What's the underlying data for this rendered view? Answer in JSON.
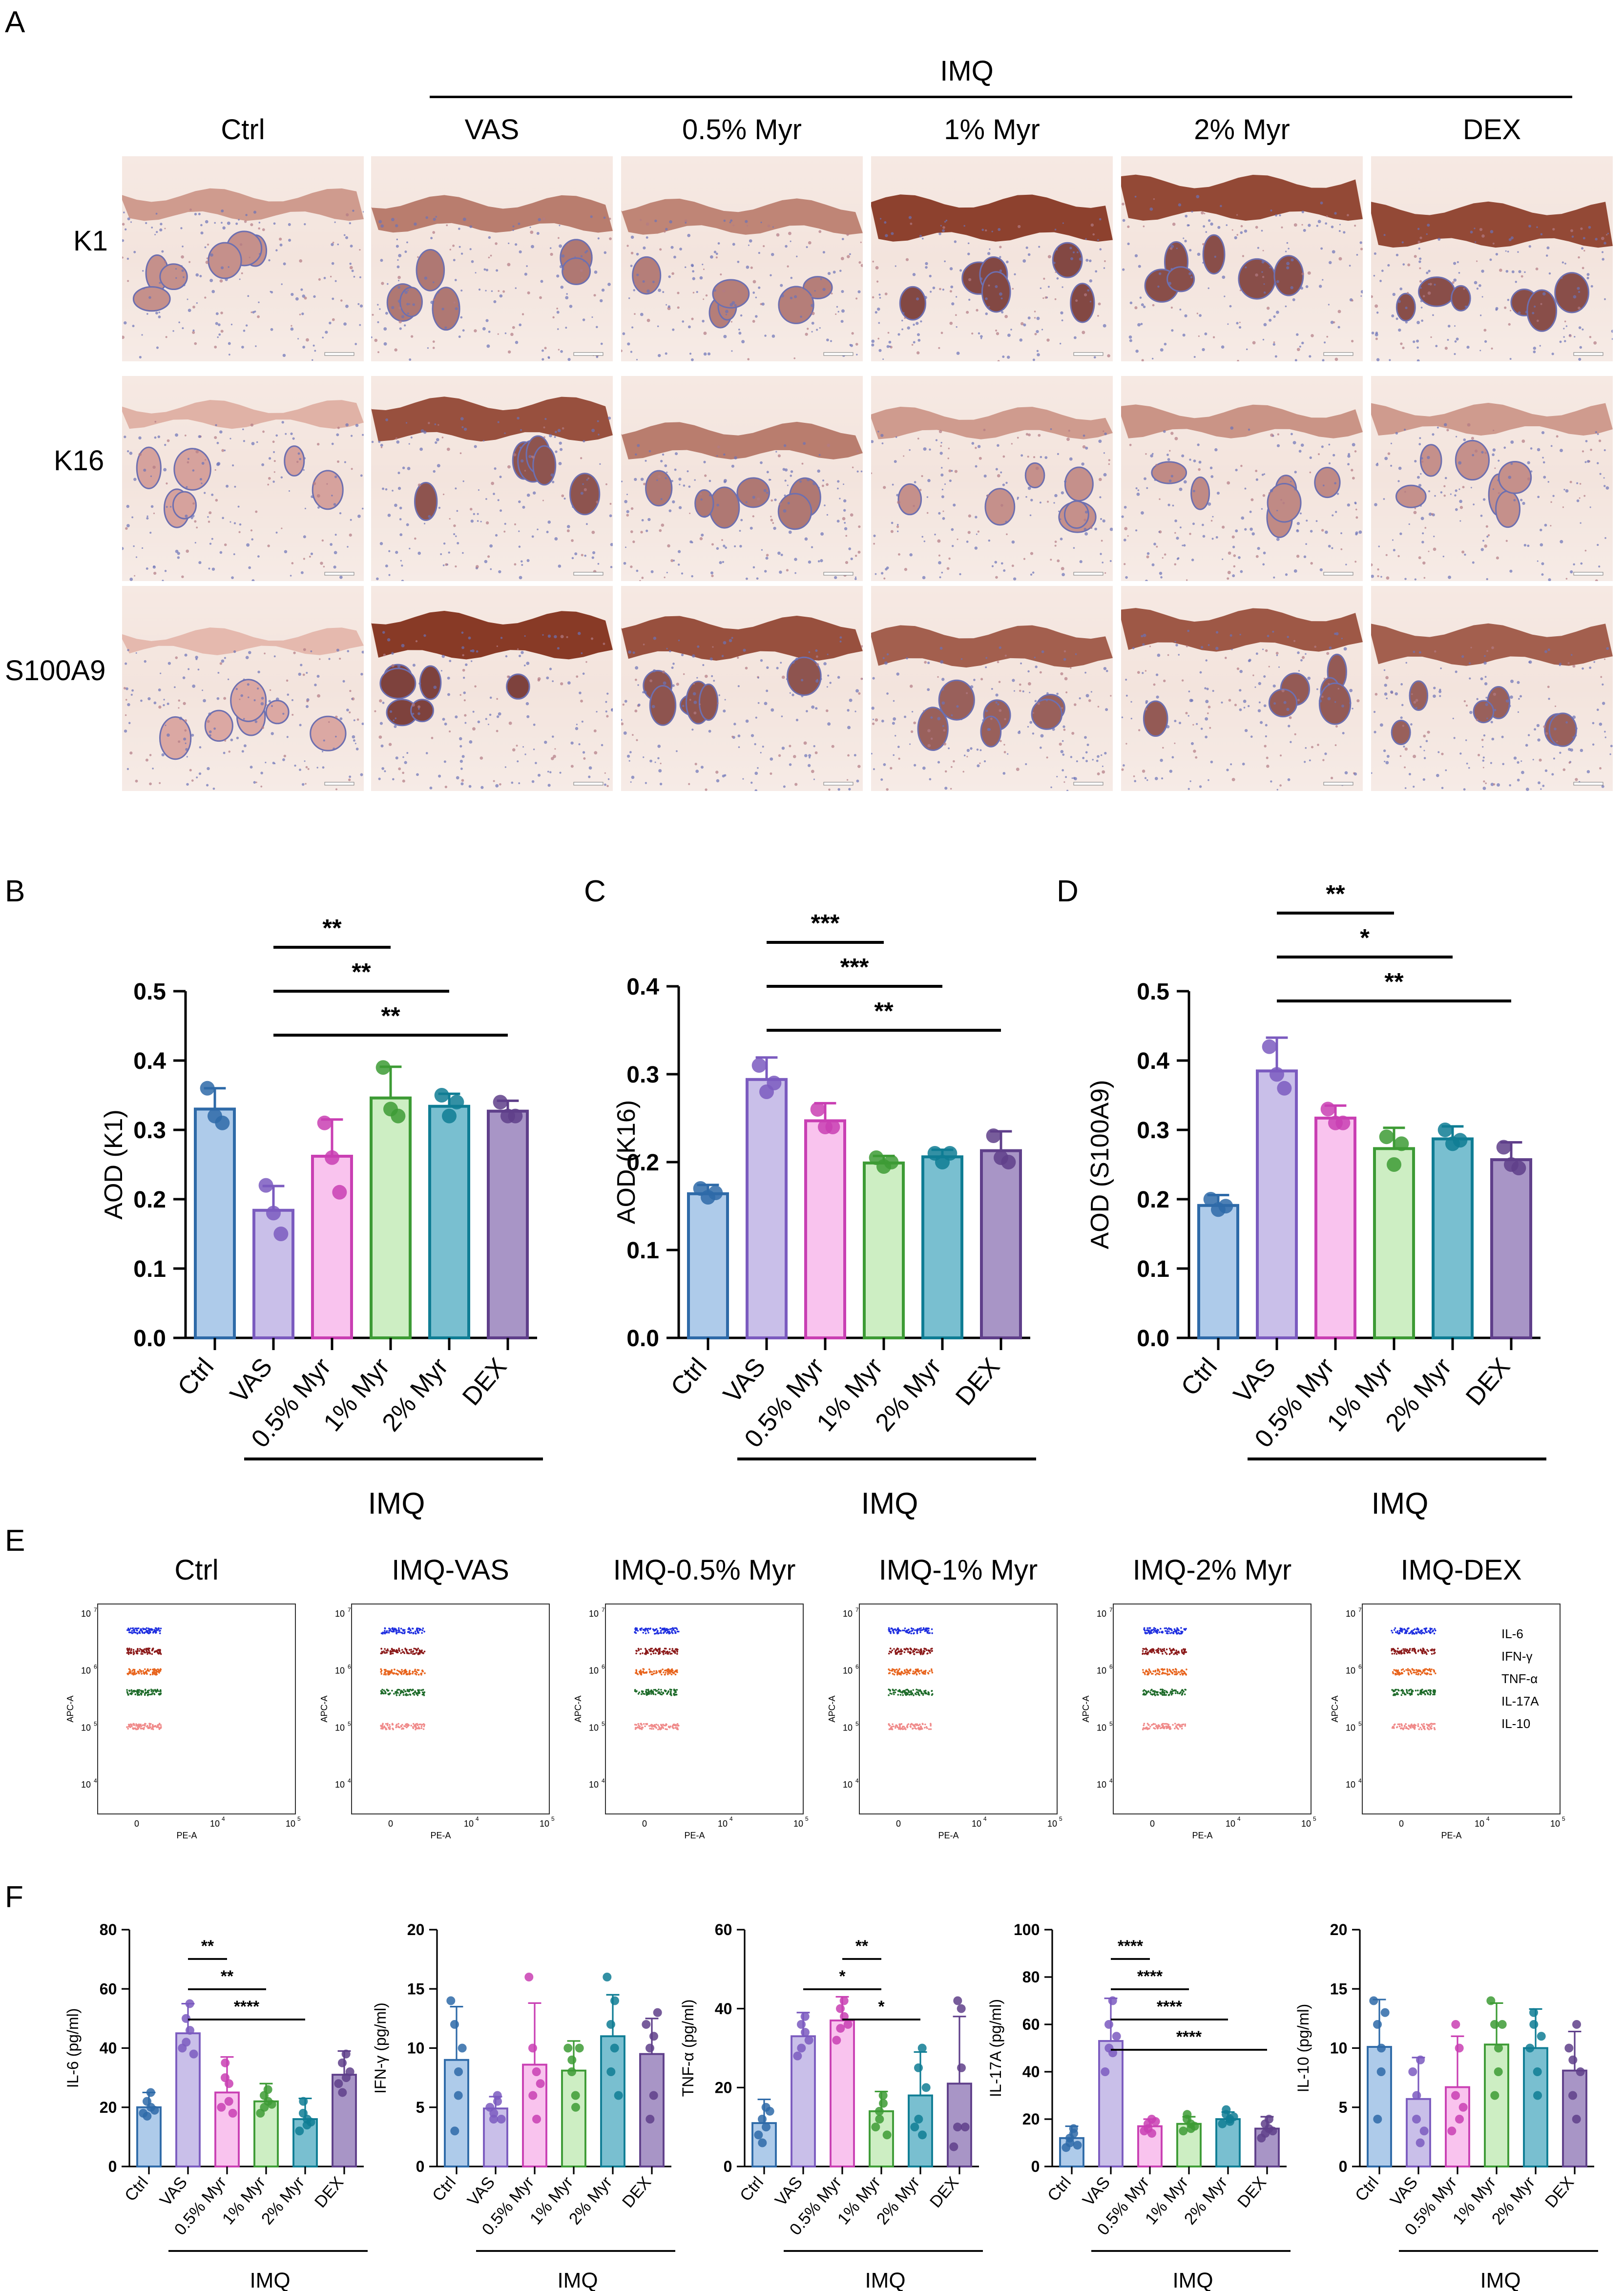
{
  "panel_labels": {
    "A": "A",
    "B": "B",
    "C": "C",
    "D": "D",
    "E": "E",
    "F": "F"
  },
  "panel_a": {
    "imq_label": "IMQ",
    "columns": [
      "Ctrl",
      "VAS",
      "0.5% Myr",
      "1% Myr",
      "2% Myr",
      "DEX"
    ],
    "rows": [
      "K1",
      "K16",
      "S100A9"
    ],
    "stain_colors": {
      "epidermis": "#9a3a22",
      "nuclei": "#5560a8",
      "background": "#f4e6df"
    }
  },
  "colors": {
    "Ctrl": "#aecbea",
    "Ctrl_edge": "#2e6aa8",
    "VAS": "#c9bfe9",
    "VAS_edge": "#7b5bbf",
    "0.5% Myr": "#f9c3ee",
    "0.5% Myr_edge": "#c93fb3",
    "1% Myr": "#cdeec3",
    "1% Myr_edge": "#3d9b35",
    "2% Myr": "#79bfd0",
    "2% Myr_edge": "#0f7d94",
    "DEX": "#a895c6",
    "DEX_edge": "#5f3f8a"
  },
  "chart_data": [
    {
      "panel": "B",
      "type": "bar",
      "categories": [
        "Ctrl",
        "VAS",
        "0.5% Myr",
        "1% Myr",
        "2% Myr",
        "DEX"
      ],
      "values": [
        0.33,
        0.184,
        0.262,
        0.346,
        0.334,
        0.327
      ],
      "errors": [
        0.03,
        0.035,
        0.053,
        0.045,
        0.018,
        0.015
      ],
      "points": [
        [
          0.36,
          0.32,
          0.31
        ],
        [
          0.22,
          0.18,
          0.15
        ],
        [
          0.31,
          0.26,
          0.21
        ],
        [
          0.39,
          0.33,
          0.32
        ],
        [
          0.35,
          0.32,
          0.34
        ],
        [
          0.34,
          0.32,
          0.32
        ]
      ],
      "ylabel": "AOD (K1)",
      "ylim": [
        0,
        0.5
      ],
      "yticks": [
        "0.0",
        "0.1",
        "0.2",
        "0.3",
        "0.4",
        "0.5"
      ],
      "group_label": "IMQ",
      "significance": [
        {
          "from": 1,
          "to": 3,
          "label": "**"
        },
        {
          "from": 1,
          "to": 4,
          "label": "**"
        },
        {
          "from": 1,
          "to": 5,
          "label": "**"
        }
      ]
    },
    {
      "panel": "C",
      "type": "bar",
      "categories": [
        "Ctrl",
        "VAS",
        "0.5% Myr",
        "1% Myr",
        "2% Myr",
        "DEX"
      ],
      "values": [
        0.164,
        0.294,
        0.247,
        0.199,
        0.206,
        0.213
      ],
      "errors": [
        0.01,
        0.025,
        0.02,
        0.008,
        0.008,
        0.022
      ],
      "points": [
        [
          0.17,
          0.16,
          0.165
        ],
        [
          0.31,
          0.28,
          0.29
        ],
        [
          0.26,
          0.24,
          0.24
        ],
        [
          0.205,
          0.195,
          0.2
        ],
        [
          0.21,
          0.2,
          0.21
        ],
        [
          0.23,
          0.205,
          0.2
        ]
      ],
      "ylabel": "AOD (K16)",
      "ylim": [
        0,
        0.4
      ],
      "yticks": [
        "0.0",
        "0.1",
        "0.2",
        "0.3",
        "0.4"
      ],
      "group_label": "IMQ",
      "significance": [
        {
          "from": 1,
          "to": 3,
          "label": "***"
        },
        {
          "from": 1,
          "to": 4,
          "label": "***"
        },
        {
          "from": 1,
          "to": 5,
          "label": "**"
        }
      ]
    },
    {
      "panel": "D",
      "type": "bar",
      "categories": [
        "Ctrl",
        "VAS",
        "0.5% Myr",
        "1% Myr",
        "2% Myr",
        "DEX"
      ],
      "values": [
        0.191,
        0.385,
        0.317,
        0.273,
        0.287,
        0.257
      ],
      "errors": [
        0.015,
        0.048,
        0.018,
        0.03,
        0.018,
        0.025
      ],
      "points": [
        [
          0.2,
          0.185,
          0.19
        ],
        [
          0.42,
          0.38,
          0.36
        ],
        [
          0.33,
          0.31,
          0.31
        ],
        [
          0.29,
          0.25,
          0.28
        ],
        [
          0.3,
          0.28,
          0.285
        ],
        [
          0.275,
          0.25,
          0.245
        ]
      ],
      "ylabel": "AOD (S100A9)",
      "ylim": [
        0,
        0.5
      ],
      "yticks": [
        "0.0",
        "0.1",
        "0.2",
        "0.3",
        "0.4",
        "0.5"
      ],
      "group_label": "IMQ",
      "significance": [
        {
          "from": 1,
          "to": 3,
          "label": "**"
        },
        {
          "from": 1,
          "to": 4,
          "label": "*"
        },
        {
          "from": 1,
          "to": 5,
          "label": "**"
        }
      ]
    },
    {
      "panel": "E",
      "type": "scatter",
      "plots": [
        "Ctrl",
        "IMQ-VAS",
        "IMQ-0.5% Myr",
        "IMQ-1% Myr",
        "IMQ-2% Myr",
        "IMQ-DEX"
      ],
      "xlabel": "PE-A",
      "ylabel": "APC-A",
      "xticks": [
        "0",
        "10",
        "10"
      ],
      "xtick_exps": [
        "",
        "4",
        "5"
      ],
      "yticks": [
        "10",
        "10",
        "10",
        "10"
      ],
      "ytick_exps": [
        "4",
        "5",
        "6",
        "7"
      ],
      "populations": [
        {
          "name": "IL-6",
          "color": "#1f2fe0"
        },
        {
          "name": "IFN-γ",
          "color": "#8b1a1a"
        },
        {
          "name": "TNF-α",
          "color": "#e8651e"
        },
        {
          "name": "IL-17A",
          "color": "#1e6b2a"
        },
        {
          "name": "IL-10",
          "color": "#f08a8a"
        }
      ]
    },
    {
      "panel": "F1",
      "type": "bar",
      "categories": [
        "Ctrl",
        "VAS",
        "0.5% Myr",
        "1% Myr",
        "2% Myr",
        "DEX"
      ],
      "values": [
        20,
        45,
        25,
        22,
        16,
        31
      ],
      "errors": [
        5,
        10,
        12,
        6,
        7,
        8
      ],
      "points": [
        [
          18,
          22,
          25,
          17,
          20,
          19
        ],
        [
          40,
          50,
          55,
          42,
          46,
          38
        ],
        [
          20,
          30,
          22,
          35,
          28,
          18
        ],
        [
          18,
          24,
          26,
          20,
          22,
          21
        ],
        [
          12,
          18,
          14,
          22,
          16,
          15
        ],
        [
          28,
          35,
          38,
          25,
          30,
          32
        ]
      ],
      "ylabel": "IL-6 (pg/ml)",
      "ylim": [
        0,
        80
      ],
      "yticks": [
        "0",
        "20",
        "40",
        "60",
        "80"
      ],
      "group_label": "IMQ",
      "significance": [
        {
          "from": 1,
          "to": 2,
          "label": "**"
        },
        {
          "from": 1,
          "to": 3,
          "label": "**"
        },
        {
          "from": 1,
          "to": 4,
          "label": "****"
        }
      ]
    },
    {
      "panel": "F2",
      "type": "bar",
      "categories": [
        "Ctrl",
        "VAS",
        "0.5% Myr",
        "1% Myr",
        "2% Myr",
        "DEX"
      ],
      "values": [
        9.0,
        4.9,
        8.6,
        8.1,
        11.0,
        9.5
      ],
      "errors": [
        4.5,
        1.0,
        5.2,
        2.5,
        3.5,
        3.0
      ],
      "points": [
        [
          14,
          12,
          6,
          3,
          8,
          10
        ],
        [
          5,
          4,
          6,
          4.5,
          5.5,
          4
        ],
        [
          16,
          10,
          8,
          6,
          4,
          7
        ],
        [
          10,
          8,
          6,
          9,
          5,
          10
        ],
        [
          16,
          12,
          10,
          8,
          14,
          6
        ],
        [
          12,
          10,
          6,
          4,
          11,
          13
        ]
      ],
      "ylabel": "IFN-γ (pg/ml)",
      "ylim": [
        0,
        20
      ],
      "yticks": [
        "0",
        "5",
        "10",
        "15",
        "20"
      ],
      "group_label": "IMQ",
      "significance": []
    },
    {
      "panel": "F3",
      "type": "bar",
      "categories": [
        "Ctrl",
        "VAS",
        "0.5% Myr",
        "1% Myr",
        "2% Myr",
        "DEX"
      ],
      "values": [
        11,
        33,
        37,
        14,
        18,
        21
      ],
      "errors": [
        6,
        6,
        6,
        5,
        11,
        17
      ],
      "points": [
        [
          8,
          12,
          15,
          6,
          10,
          14
        ],
        [
          28,
          36,
          38,
          30,
          34,
          32
        ],
        [
          32,
          40,
          42,
          35,
          38,
          36
        ],
        [
          10,
          14,
          18,
          12,
          16,
          8
        ],
        [
          10,
          25,
          30,
          12,
          8,
          20
        ],
        [
          5,
          10,
          40,
          42,
          25,
          10
        ]
      ],
      "ylabel": "TNF-α (pg/ml)",
      "ylim": [
        0,
        60
      ],
      "yticks": [
        "0",
        "20",
        "40",
        "60"
      ],
      "group_label": "IMQ",
      "significance": [
        {
          "from": 2,
          "to": 3,
          "label": "**"
        },
        {
          "from": 1,
          "to": 3,
          "label": "*"
        },
        {
          "from": 2,
          "to": 4,
          "label": "*"
        }
      ]
    },
    {
      "panel": "F4",
      "type": "bar",
      "categories": [
        "Ctrl",
        "VAS",
        "0.5% Myr",
        "1% Myr",
        "2% Myr",
        "DEX"
      ],
      "values": [
        12,
        53,
        17,
        18,
        20,
        16
      ],
      "errors": [
        5,
        18,
        3,
        3,
        3,
        5
      ],
      "points": [
        [
          8,
          12,
          16,
          10,
          14,
          9
        ],
        [
          40,
          60,
          70,
          50,
          48,
          55
        ],
        [
          15,
          18,
          20,
          16,
          14,
          19
        ],
        [
          15,
          20,
          18,
          22,
          16,
          17
        ],
        [
          18,
          22,
          20,
          24,
          19,
          21
        ],
        [
          12,
          18,
          16,
          14,
          20,
          15
        ]
      ],
      "ylabel": "IL-17A (pg/ml)",
      "ylim": [
        0,
        100
      ],
      "yticks": [
        "0",
        "20",
        "40",
        "60",
        "80",
        "100"
      ],
      "group_label": "IMQ",
      "significance": [
        {
          "from": 1,
          "to": 2,
          "label": "****"
        },
        {
          "from": 1,
          "to": 3,
          "label": "****"
        },
        {
          "from": 1,
          "to": 4,
          "label": "****"
        },
        {
          "from": 1,
          "to": 5,
          "label": "****"
        }
      ]
    },
    {
      "panel": "F5",
      "type": "bar",
      "categories": [
        "Ctrl",
        "VAS",
        "0.5% Myr",
        "1% Myr",
        "2% Myr",
        "DEX"
      ],
      "values": [
        10.1,
        5.7,
        6.7,
        10.3,
        10.0,
        8.1
      ],
      "errors": [
        4.0,
        3.5,
        4.3,
        3.5,
        3.3,
        3.3
      ],
      "points": [
        [
          14,
          12,
          8,
          4,
          10,
          13
        ],
        [
          8,
          4,
          2,
          6,
          9,
          3
        ],
        [
          3,
          6,
          10,
          12,
          4,
          5
        ],
        [
          14,
          12,
          8,
          6,
          10,
          12
        ],
        [
          10,
          13,
          8,
          12,
          6,
          11
        ],
        [
          10,
          6,
          4,
          9,
          12,
          8
        ]
      ],
      "ylabel": "IL-10 (pg/ml)",
      "ylim": [
        0,
        20
      ],
      "yticks": [
        "0",
        "5",
        "10",
        "15",
        "20"
      ],
      "group_label": "IMQ",
      "significance": []
    }
  ]
}
